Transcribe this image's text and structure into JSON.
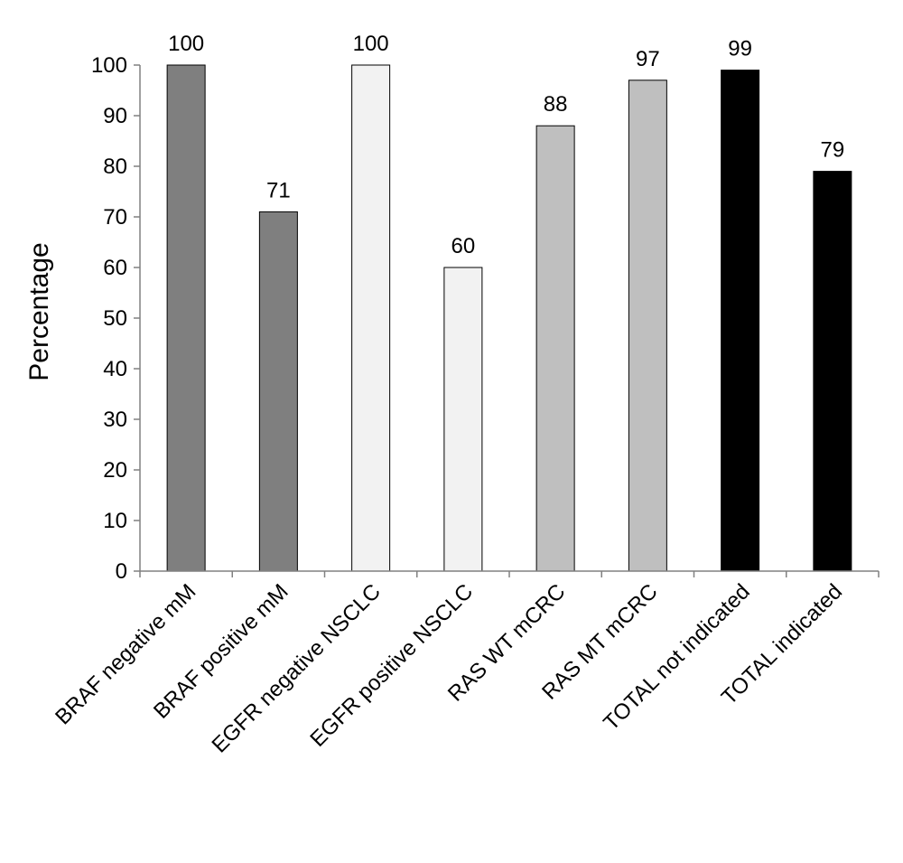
{
  "chart_data": {
    "type": "bar",
    "categories": [
      "BRAF negative mM",
      "BRAF positive mM",
      "EGFR negative NSCLC",
      "EGFR positive NSCLC",
      "RAS WT mCRC",
      "RAS MT mCRC",
      "TOTAL not indicated",
      "TOTAL indicated"
    ],
    "values": [
      100,
      71,
      100,
      60,
      88,
      97,
      99,
      79
    ],
    "bar_colors": [
      "#7f7f7f",
      "#7f7f7f",
      "#f2f2f2",
      "#f2f2f2",
      "#bfbfbf",
      "#bfbfbf",
      "#000000",
      "#000000"
    ],
    "ylabel": "Percentage",
    "ylim": [
      0,
      100
    ],
    "yticks": [
      0,
      10,
      20,
      30,
      40,
      50,
      60,
      70,
      80,
      90,
      100
    ],
    "grid": false,
    "legend": "none",
    "data_labels": true
  }
}
